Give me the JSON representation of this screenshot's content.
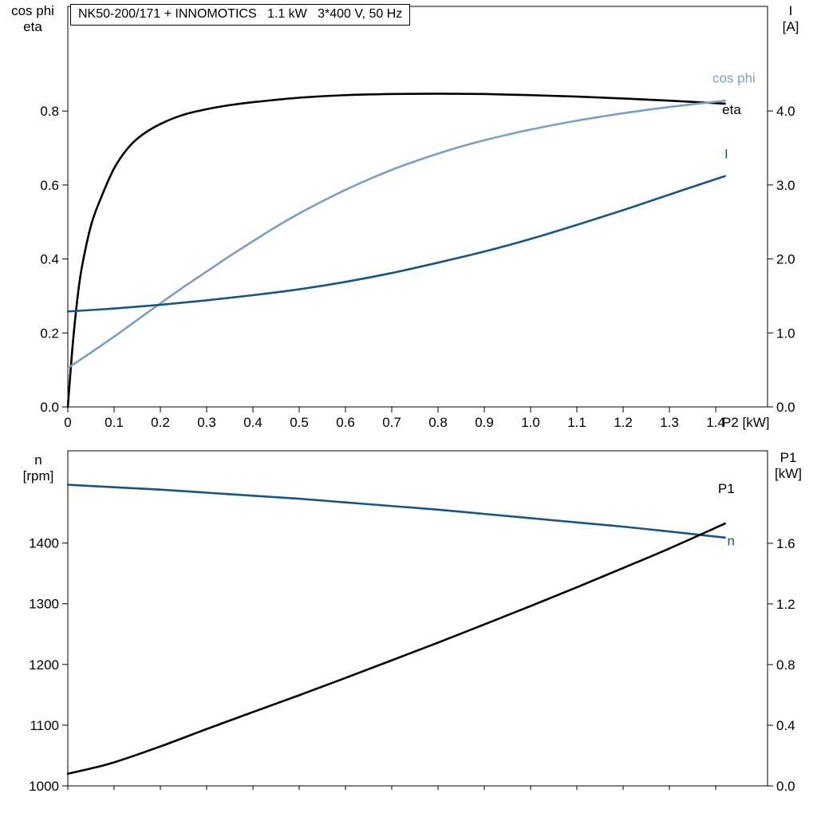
{
  "title": "NK50-200/171 + INNOMOTICS   1.1 kW   3*400 V, 50 Hz",
  "colors": {
    "curve_black": "#000000",
    "curve_light_blue": "#7D9EC0",
    "curve_dark_blue": "#1A5480",
    "frame": "#000000",
    "background": "#ffffff"
  },
  "chart_data": [
    {
      "type": "line",
      "id": "motor-electrical-chart",
      "title": "NK50-200/171 + INNOMOTICS   1.1 kW   3*400 V, 50 Hz",
      "xlabel": "P2 [kW]",
      "ylabel_left": {
        "line1": "cos phi",
        "line2": "eta"
      },
      "ylabel_right": {
        "line1": "I",
        "line2": "[A]"
      },
      "xlim": [
        0,
        1.512
      ],
      "xticks": [
        0,
        0.1,
        0.2,
        0.3,
        0.4,
        0.5,
        0.6,
        0.7,
        0.8,
        0.9,
        1.0,
        1.1,
        1.2,
        1.3,
        1.4
      ],
      "xtick_labels": [
        "0",
        "0.1",
        "0.2",
        "0.3",
        "0.4",
        "0.5",
        "0.6",
        "0.7",
        "0.8",
        "0.9",
        "1.0",
        "1.1",
        "1.2",
        "1.3",
        "1.4"
      ],
      "ylim_left": [
        0,
        1.083
      ],
      "yticks_left": [
        0,
        0.2,
        0.4,
        0.6,
        0.8
      ],
      "ytick_labels_left": [
        "0.0",
        "0.2",
        "0.4",
        "0.6",
        "0.8"
      ],
      "ylim_right": [
        0,
        5.414
      ],
      "yticks_right": [
        0,
        1,
        2,
        3,
        4
      ],
      "ytick_labels_right": [
        "0.0",
        "1.0",
        "2.0",
        "3.0",
        "4.0"
      ],
      "grid": false,
      "show_x_tick_labels": true,
      "series": [
        {
          "name": "eta",
          "axis": "left",
          "color": "#000000",
          "x": [
            0,
            0.01,
            0.02,
            0.03,
            0.05,
            0.07,
            0.1,
            0.13,
            0.16,
            0.2,
            0.25,
            0.3,
            0.35,
            0.4,
            0.5,
            0.6,
            0.7,
            0.8,
            0.9,
            1.0,
            1.1,
            1.2,
            1.3,
            1.42
          ],
          "y": [
            0,
            0.16,
            0.285,
            0.375,
            0.49,
            0.56,
            0.645,
            0.7,
            0.735,
            0.765,
            0.79,
            0.805,
            0.816,
            0.824,
            0.836,
            0.843,
            0.846,
            0.847,
            0.846,
            0.843,
            0.839,
            0.834,
            0.828,
            0.82
          ],
          "end_label": {
            "text": "eta",
            "x": 1.414,
            "y": 0.792
          }
        },
        {
          "name": "cos phi",
          "axis": "left",
          "color": "#7D9EC0",
          "x": [
            0,
            0.05,
            0.1,
            0.15,
            0.2,
            0.25,
            0.3,
            0.35,
            0.4,
            0.45,
            0.5,
            0.55,
            0.6,
            0.65,
            0.7,
            0.75,
            0.8,
            0.85,
            0.9,
            0.95,
            1.0,
            1.1,
            1.2,
            1.3,
            1.42
          ],
          "y": [
            0.105,
            0.147,
            0.19,
            0.235,
            0.28,
            0.324,
            0.366,
            0.408,
            0.448,
            0.487,
            0.523,
            0.556,
            0.587,
            0.615,
            0.641,
            0.664,
            0.685,
            0.704,
            0.721,
            0.736,
            0.75,
            0.774,
            0.794,
            0.811,
            0.828
          ],
          "end_label": {
            "text": "cos phi",
            "x": 1.393,
            "y": 0.877
          }
        },
        {
          "name": "I",
          "axis": "right",
          "color": "#1A5480",
          "x": [
            0,
            0.1,
            0.2,
            0.3,
            0.4,
            0.5,
            0.6,
            0.7,
            0.8,
            0.9,
            1.0,
            1.1,
            1.2,
            1.3,
            1.42
          ],
          "y": [
            1.29,
            1.33,
            1.38,
            1.44,
            1.51,
            1.59,
            1.69,
            1.81,
            1.95,
            2.1,
            2.27,
            2.46,
            2.66,
            2.87,
            3.12
          ],
          "end_label": {
            "text": "I",
            "x": 1.419,
            "y": 3.36
          }
        }
      ]
    },
    {
      "type": "line",
      "id": "speed-power-chart",
      "title": "",
      "xlabel": "",
      "ylabel_left": {
        "line1": "n",
        "line2": "[rpm]"
      },
      "ylabel_right": {
        "line1": "P1",
        "line2": "[kW]"
      },
      "xlim": [
        0,
        1.512
      ],
      "xticks": [
        0,
        0.1,
        0.2,
        0.3,
        0.4,
        0.5,
        0.6,
        0.7,
        0.8,
        0.9,
        1.0,
        1.1,
        1.2,
        1.3,
        1.4
      ],
      "xtick_labels": [],
      "ylim_left": [
        1000,
        1552
      ],
      "yticks_left": [
        1000,
        1100,
        1200,
        1300,
        1400
      ],
      "ytick_labels_left": [
        "1000",
        "1100",
        "1200",
        "1300",
        "1400"
      ],
      "ylim_right": [
        0,
        2.21
      ],
      "yticks_right": [
        0,
        0.4,
        0.8,
        1.2,
        1.6
      ],
      "ytick_labels_right": [
        "0.0",
        "0.4",
        "0.8",
        "1.2",
        "1.6"
      ],
      "grid": false,
      "show_x_tick_labels": false,
      "series": [
        {
          "name": "n",
          "axis": "left",
          "color": "#1A5480",
          "x": [
            0,
            0.1,
            0.2,
            0.3,
            0.4,
            0.5,
            0.6,
            0.7,
            0.8,
            0.9,
            1.0,
            1.1,
            1.2,
            1.3,
            1.42
          ],
          "y": [
            1496,
            1492,
            1488,
            1483,
            1478,
            1473,
            1467,
            1461,
            1455,
            1448,
            1441,
            1434,
            1427,
            1419,
            1409
          ],
          "end_label": {
            "text": "n",
            "x": 1.425,
            "y": 1396
          }
        },
        {
          "name": "P1",
          "axis": "right",
          "color": "#000000",
          "x": [
            0,
            0.05,
            0.1,
            0.2,
            0.3,
            0.4,
            0.5,
            0.6,
            0.7,
            0.8,
            0.9,
            1.0,
            1.1,
            1.2,
            1.3,
            1.42
          ],
          "y": [
            0.08,
            0.115,
            0.155,
            0.26,
            0.375,
            0.487,
            0.598,
            0.712,
            0.828,
            0.945,
            1.065,
            1.186,
            1.31,
            1.437,
            1.566,
            1.73
          ],
          "end_label": {
            "text": "P1",
            "x": 1.405,
            "y": 1.93
          }
        }
      ]
    }
  ]
}
